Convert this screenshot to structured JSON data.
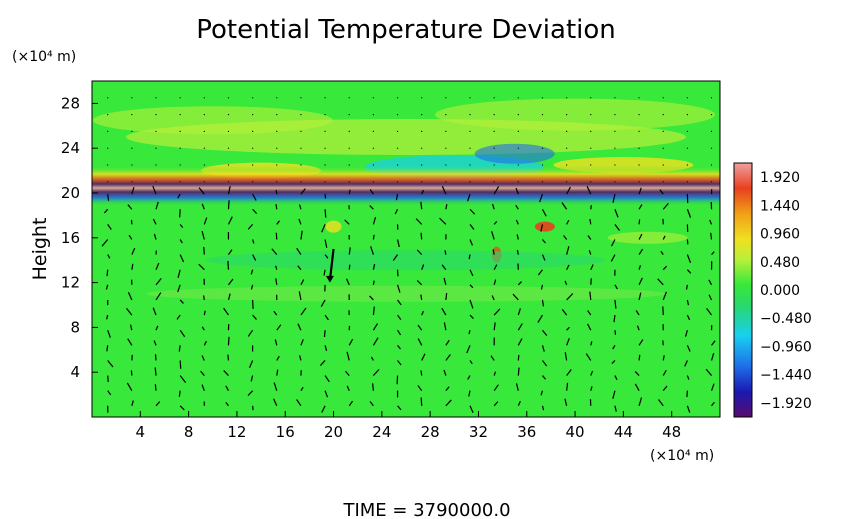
{
  "chart_data": {
    "type": "heatmap",
    "title": "Potential Temperature Deviation",
    "xlabel": "",
    "ylabel": "Height",
    "x_unit": "(×10⁴ m)",
    "y_unit": "(×10⁴ m)",
    "xlim": [
      0,
      52
    ],
    "ylim": [
      0,
      30
    ],
    "x_ticks": [
      4,
      8,
      12,
      16,
      20,
      24,
      28,
      32,
      36,
      40,
      44,
      48
    ],
    "y_ticks": [
      4,
      8,
      12,
      16,
      20,
      24,
      28
    ],
    "colorbar": {
      "min": -2.16,
      "max": 2.16,
      "labels": [
        "1.920",
        "1.440",
        "0.960",
        "0.480",
        "0.000",
        "−0.480",
        "−0.960",
        "−1.440",
        "−1.920"
      ],
      "values": [
        1.92,
        1.44,
        0.96,
        0.48,
        0.0,
        -0.48,
        -0.96,
        -1.44,
        -1.92
      ],
      "colors": [
        "#5a0a6e",
        "#1a1ab0",
        "#1f6ee8",
        "#18d0f0",
        "#2ad86a",
        "#38e83a",
        "#b8f03a",
        "#f0e020",
        "#f0a018",
        "#e8401e",
        "#f0a0a0"
      ]
    },
    "overlay": "wind vectors",
    "grid": false,
    "legend": "right"
  },
  "footer": {
    "time_label": "TIME  =  3790000.0"
  }
}
